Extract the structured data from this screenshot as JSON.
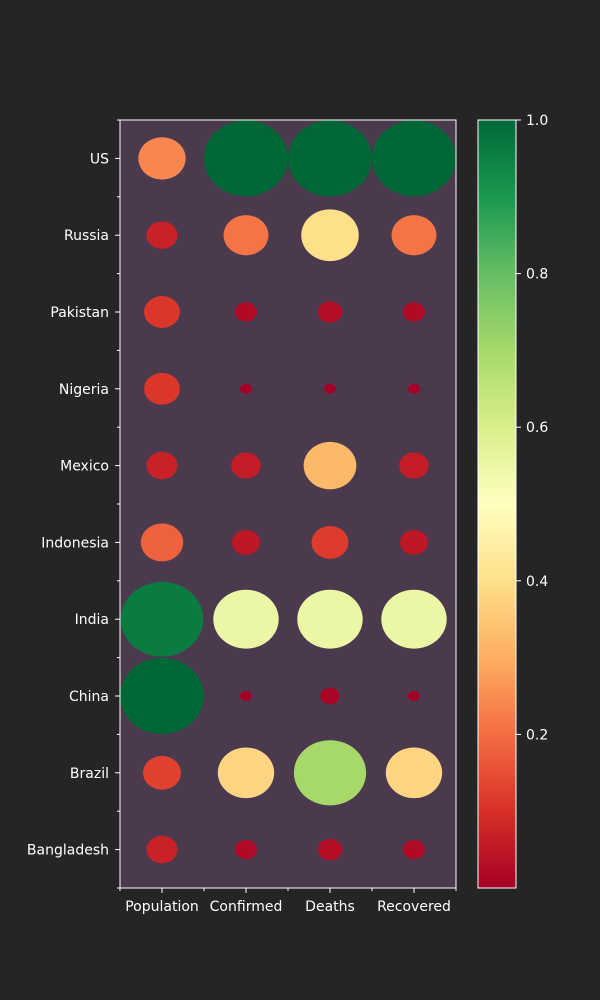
{
  "chart_data": {
    "type": "bubble-heatmap",
    "columns": [
      "Population",
      "Confirmed",
      "Deaths",
      "Recovered"
    ],
    "rows": [
      "US",
      "Russia",
      "Pakistan",
      "Nigeria",
      "Mexico",
      "Indonesia",
      "India",
      "China",
      "Brazil",
      "Bangladesh"
    ],
    "values": [
      [
        0.24,
        1.0,
        1.0,
        1.0
      ],
      [
        0.07,
        0.21,
        0.4,
        0.21
      ],
      [
        0.11,
        0.02,
        0.03,
        0.02
      ],
      [
        0.11,
        0.0,
        0.0,
        0.0
      ],
      [
        0.07,
        0.06,
        0.32,
        0.06
      ],
      [
        0.18,
        0.05,
        0.12,
        0.05
      ],
      [
        0.96,
        0.55,
        0.55,
        0.55
      ],
      [
        1.0,
        0.0,
        0.01,
        0.0
      ],
      [
        0.13,
        0.38,
        0.7,
        0.38
      ],
      [
        0.07,
        0.02,
        0.03,
        0.02
      ]
    ],
    "colorbar": {
      "colormap": "RdYlGn",
      "range": [
        0.0,
        1.0
      ],
      "ticks": [
        "0.2",
        "0.4",
        "0.6",
        "0.8",
        "1.0"
      ]
    },
    "colors": {
      "page_background": "#252525",
      "plot_background": "#4b3a4d",
      "text": "#ffffff"
    }
  }
}
